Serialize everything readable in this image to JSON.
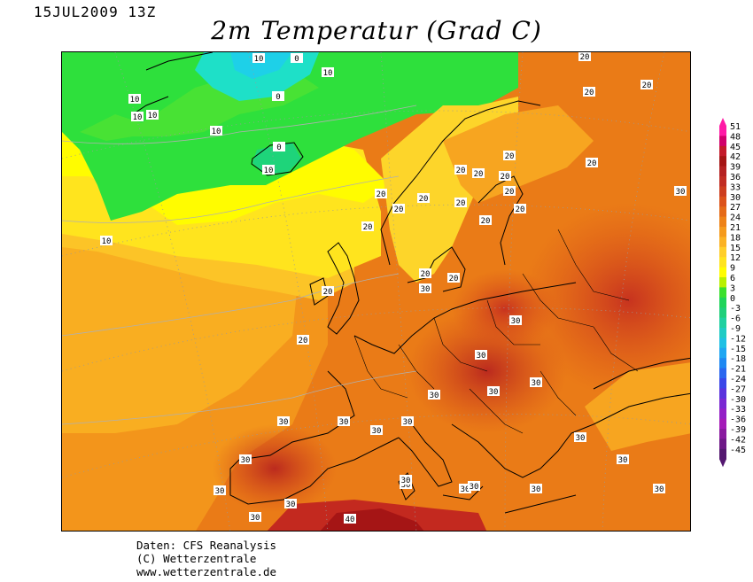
{
  "header": {
    "date_label": "15JUL2009 13Z",
    "title": "2m Temperatur (Grad C)"
  },
  "map": {
    "region": "Europe",
    "variable": "2m temperature",
    "units": "Grad C",
    "contour_labels": [
      "10",
      "0",
      "10",
      "0",
      "10",
      "10",
      "10",
      "10",
      "0",
      "10",
      "10",
      "20",
      "20",
      "20",
      "20",
      "20",
      "20",
      "20",
      "20",
      "20",
      "20",
      "20",
      "20",
      "20",
      "20",
      "20",
      "20",
      "20",
      "20",
      "20",
      "20",
      "30",
      "30",
      "30",
      "30",
      "30",
      "30",
      "30",
      "30",
      "30",
      "30",
      "30",
      "30",
      "30",
      "30",
      "30",
      "30",
      "30",
      "30",
      "30",
      "30",
      "30",
      "30",
      "30",
      "40"
    ]
  },
  "scale": {
    "ticks": [
      "51",
      "48",
      "45",
      "42",
      "39",
      "36",
      "33",
      "30",
      "27",
      "24",
      "21",
      "18",
      "15",
      "12",
      "9",
      "6",
      "3",
      "0",
      "-3",
      "-6",
      "-9",
      "-12",
      "-15",
      "-18",
      "-21",
      "-24",
      "-27",
      "-30",
      "-33",
      "-36",
      "-39",
      "-42",
      "-45"
    ],
    "colors": [
      "#ff1aa6",
      "#d1006b",
      "#c41a2b",
      "#a51515",
      "#b52222",
      "#c12d23",
      "#cd3e1f",
      "#dc521a",
      "#e56a17",
      "#ee8217",
      "#f59a1c",
      "#fbb224",
      "#ffce2a",
      "#ffe31e",
      "#fffc00",
      "#b8f000",
      "#3ae02e",
      "#1ed45a",
      "#1ecf7a",
      "#1ed0a0",
      "#1ecbc4",
      "#1ec0e4",
      "#1ea6f2",
      "#1e88f2",
      "#2a66ef",
      "#3a46e8",
      "#5a32dd",
      "#7a28d2",
      "#9420c6",
      "#a41bb8",
      "#8a1aa0",
      "#6e1887",
      "#541870"
    ]
  },
  "footer": {
    "line1": "Daten: CFS Reanalysis",
    "line2": "(C) Wetterzentrale",
    "line3": "www.wetterzentrale.de"
  }
}
